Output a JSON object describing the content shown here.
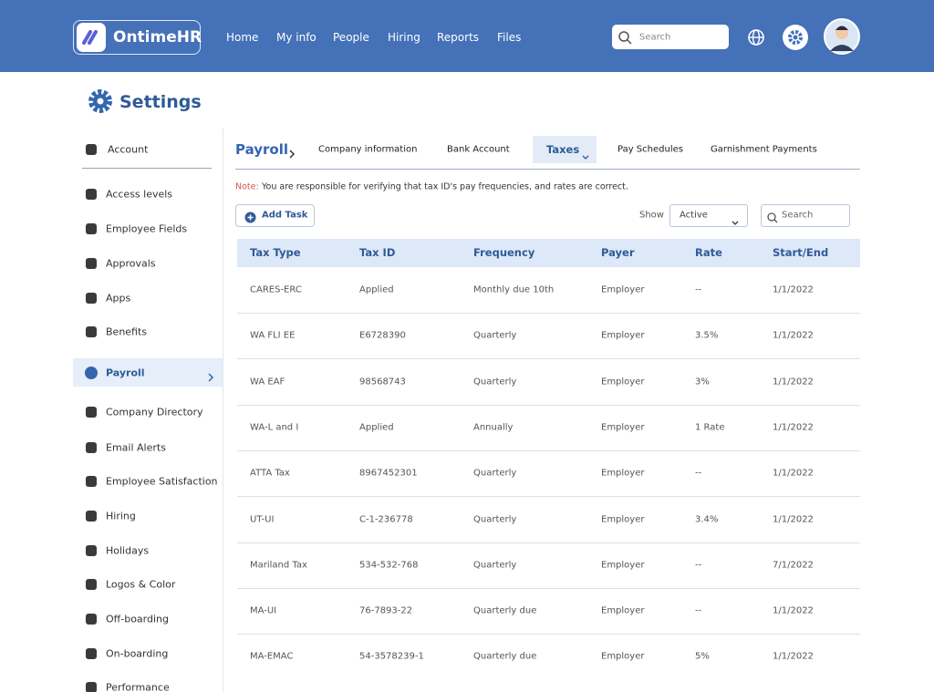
{
  "header": {
    "logo": "OntimeHR",
    "nav": [
      "Home",
      "My info",
      "People",
      "Hiring",
      "Reports",
      "Files"
    ],
    "search_placeholder": "Search"
  },
  "page_title": "Settings",
  "sidebar": {
    "items": [
      "Account",
      "Access levels",
      "Employee Fields",
      "Approvals",
      "Apps",
      "Benefits",
      "Payroll",
      "Company Directory",
      "Email Alerts",
      "Employee Satisfaction",
      "Hiring",
      "Holidays",
      "Logos & Color",
      "Off-boarding",
      "On-boarding",
      "Performance"
    ],
    "active": "Payroll"
  },
  "tabs": {
    "section": "Payroll",
    "items": [
      "Company information",
      "Bank Account",
      "Taxes",
      "Pay Schedules",
      "Garnishment Payments"
    ],
    "active": "Taxes"
  },
  "note": {
    "label": "Note:",
    "text": "You are responsible for verifying that tax ID's pay frequencies, and rates are correct."
  },
  "toolbar": {
    "add_button": "Add Task",
    "show_label": "Show",
    "show_value": "Active",
    "search_placeholder": "Search"
  },
  "table": {
    "columns": [
      "Tax Type",
      "Tax ID",
      "Frequency",
      "Payer",
      "Rate",
      "Start/End"
    ],
    "rows": [
      [
        "CARES-ERC",
        "Applied",
        "Monthly due 10th",
        "Employer",
        "--",
        "1/1/2022"
      ],
      [
        "WA FLI EE",
        "E6728390",
        "Quarterly",
        "Employer",
        "3.5%",
        "1/1/2022"
      ],
      [
        "WA EAF",
        "98568743",
        "Quarterly",
        "Employer",
        "3%",
        "1/1/2022"
      ],
      [
        "WA-L and I",
        "Applied",
        "Annually",
        "Employer",
        "1 Rate",
        "1/1/2022"
      ],
      [
        "ATTA Tax",
        "8967452301",
        "Quarterly",
        "Employer",
        "--",
        "1/1/2022"
      ],
      [
        "UT-UI",
        "C-1-236778",
        "Quarterly",
        "Employer",
        "3.4%",
        "1/1/2022"
      ],
      [
        "Mariland Tax",
        "534-532-768",
        "Quarterly",
        "Employer",
        "--",
        "7/1/2022"
      ],
      [
        "MA-UI",
        "76-7893-22",
        "Quarterly due",
        "Employer",
        "--",
        "1/1/2022"
      ],
      [
        "MA-EMAC",
        "54-3578239-1",
        "Quarterly due",
        "Employer",
        "5%",
        "1/1/2022"
      ]
    ]
  }
}
